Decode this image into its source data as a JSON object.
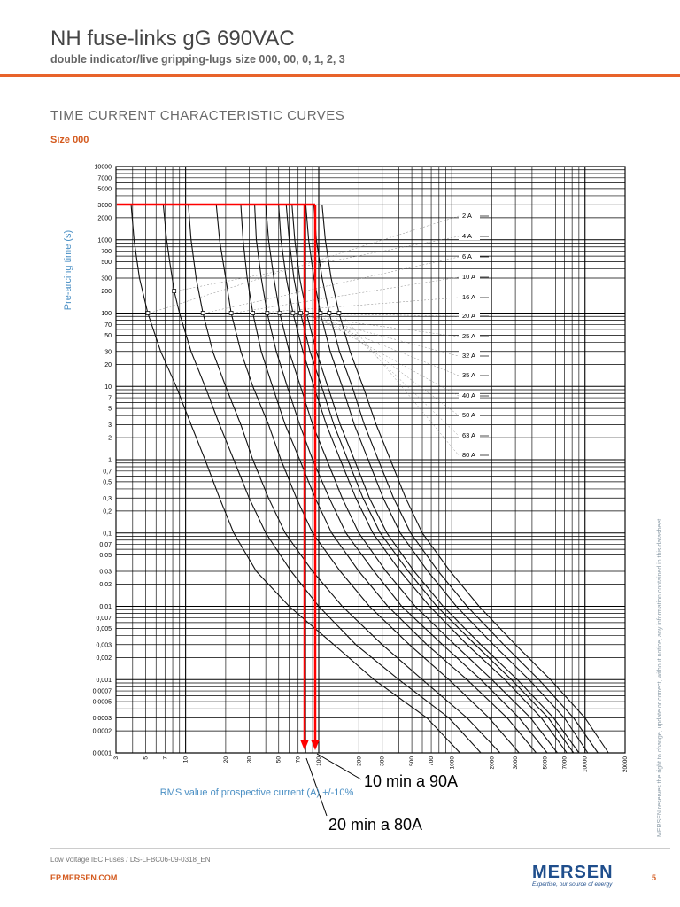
{
  "header": {
    "title": "NH fuse-links gG 690VAC",
    "subtitle": "double indicator/live gripping-lugs size 000, 00, 0, 1, 2, 3"
  },
  "section": {
    "title": "TIME CURRENT CHARACTERISTIC CURVES",
    "size_label": "Size 000"
  },
  "chart_data": {
    "type": "line",
    "title": "",
    "xlabel": "RMS value of prospective current (A) +/-10%",
    "ylabel": "Pre-arcing time (s)",
    "x_scale": "log",
    "y_scale": "log",
    "xlim": [
      3,
      20000
    ],
    "ylim": [
      0.0001,
      10000
    ],
    "grid": true,
    "x_ticks": [
      "3",
      "5",
      "7",
      "10",
      "20",
      "30",
      "50",
      "70",
      "100",
      "200",
      "300",
      "500",
      "700",
      "1000",
      "2000",
      "3000",
      "5000",
      "7000",
      "10000",
      "20000"
    ],
    "y_ticks": [
      "10000",
      "7000",
      "5000",
      "3000",
      "2000",
      "1000",
      "700",
      "500",
      "300",
      "200",
      "100",
      "70",
      "50",
      "30",
      "20",
      "10",
      "7",
      "5",
      "3",
      "2",
      "1",
      "0,7",
      "0,5",
      "0,3",
      "0,2",
      "0,1",
      "0,07",
      "0,05",
      "0,03",
      "0,02",
      "0,01",
      "0,007",
      "0,005",
      "0,003",
      "0,002",
      "0,001",
      "0,0007",
      "0,0005",
      "0,0003",
      "0,0002",
      "0,0001"
    ],
    "series": [
      {
        "name": "2 A",
        "values": [
          [
            3.9,
            3000
          ],
          [
            4.1,
            1000
          ],
          [
            4.5,
            300
          ],
          [
            5.2,
            100
          ],
          [
            6.5,
            30
          ],
          [
            8.5,
            10
          ],
          [
            11,
            3
          ],
          [
            14,
            1
          ],
          [
            18,
            0.3
          ],
          [
            23,
            0.1
          ],
          [
            34,
            0.03
          ],
          [
            60,
            0.01
          ],
          [
            130,
            0.003
          ],
          [
            260,
            0.001
          ],
          [
            650,
            0.0003
          ],
          [
            1150,
            0.0001
          ]
        ]
      },
      {
        "name": "4 A",
        "values": [
          [
            6.8,
            3000
          ],
          [
            7.2,
            1000
          ],
          [
            7.6,
            500
          ],
          [
            8.2,
            200
          ],
          [
            9,
            100
          ],
          [
            11,
            30
          ],
          [
            14,
            10
          ],
          [
            18,
            3
          ],
          [
            23,
            1
          ],
          [
            30,
            0.3
          ],
          [
            40,
            0.1
          ],
          [
            62,
            0.03
          ],
          [
            100,
            0.01
          ],
          [
            190,
            0.003
          ],
          [
            400,
            0.001
          ],
          [
            950,
            0.0003
          ],
          [
            1650,
            0.0001
          ]
        ]
      },
      {
        "name": "6 A",
        "values": [
          [
            10.5,
            3000
          ],
          [
            11,
            1000
          ],
          [
            12,
            300
          ],
          [
            13.5,
            100
          ],
          [
            16,
            30
          ],
          [
            20,
            10
          ],
          [
            26,
            3
          ],
          [
            32,
            1
          ],
          [
            42,
            0.3
          ],
          [
            56,
            0.1
          ],
          [
            90,
            0.03
          ],
          [
            150,
            0.01
          ],
          [
            300,
            0.003
          ],
          [
            600,
            0.001
          ],
          [
            1300,
            0.0003
          ],
          [
            2300,
            0.0001
          ]
        ]
      },
      {
        "name": "10 A",
        "values": [
          [
            17,
            3000
          ],
          [
            18,
            1000
          ],
          [
            20,
            300
          ],
          [
            22,
            100
          ],
          [
            26,
            30
          ],
          [
            32,
            10
          ],
          [
            42,
            3
          ],
          [
            52,
            1
          ],
          [
            68,
            0.3
          ],
          [
            90,
            0.1
          ],
          [
            145,
            0.03
          ],
          [
            240,
            0.01
          ],
          [
            480,
            0.003
          ],
          [
            950,
            0.001
          ],
          [
            1900,
            0.0003
          ],
          [
            3200,
            0.0001
          ]
        ]
      },
      {
        "name": "16 A",
        "values": [
          [
            26,
            3000
          ],
          [
            27,
            1000
          ],
          [
            29,
            300
          ],
          [
            32,
            100
          ],
          [
            37,
            30
          ],
          [
            45,
            10
          ],
          [
            56,
            3
          ],
          [
            72,
            1
          ],
          [
            94,
            0.3
          ],
          [
            125,
            0.1
          ],
          [
            200,
            0.03
          ],
          [
            330,
            0.01
          ],
          [
            650,
            0.003
          ],
          [
            1300,
            0.001
          ],
          [
            2600,
            0.0003
          ],
          [
            4300,
            0.0001
          ]
        ]
      },
      {
        "name": "20 A",
        "values": [
          [
            33,
            3000
          ],
          [
            34,
            1000
          ],
          [
            37,
            300
          ],
          [
            41,
            100
          ],
          [
            48,
            30
          ],
          [
            58,
            10
          ],
          [
            72,
            3
          ],
          [
            90,
            1
          ],
          [
            120,
            0.3
          ],
          [
            160,
            0.1
          ],
          [
            260,
            0.03
          ],
          [
            420,
            0.01
          ],
          [
            850,
            0.003
          ],
          [
            1650,
            0.001
          ],
          [
            3200,
            0.0003
          ],
          [
            5200,
            0.0001
          ]
        ]
      },
      {
        "name": "25 A",
        "values": [
          [
            40,
            3000
          ],
          [
            42,
            1000
          ],
          [
            46,
            300
          ],
          [
            51,
            100
          ],
          [
            60,
            30
          ],
          [
            73,
            10
          ],
          [
            90,
            3
          ],
          [
            115,
            1
          ],
          [
            150,
            0.3
          ],
          [
            200,
            0.1
          ],
          [
            320,
            0.03
          ],
          [
            530,
            0.01
          ],
          [
            1050,
            0.003
          ],
          [
            2000,
            0.001
          ],
          [
            3900,
            0.0003
          ],
          [
            6200,
            0.0001
          ]
        ]
      },
      {
        "name": "32 A",
        "values": [
          [
            50,
            3000
          ],
          [
            52,
            1000
          ],
          [
            57,
            300
          ],
          [
            64,
            100
          ],
          [
            76,
            30
          ],
          [
            92,
            10
          ],
          [
            114,
            3
          ],
          [
            145,
            1
          ],
          [
            190,
            0.3
          ],
          [
            255,
            0.1
          ],
          [
            410,
            0.03
          ],
          [
            680,
            0.01
          ],
          [
            1300,
            0.003
          ],
          [
            2500,
            0.001
          ],
          [
            4700,
            0.0003
          ],
          [
            7300,
            0.0001
          ]
        ]
      },
      {
        "name": "35 A",
        "values": [
          [
            57,
            3000
          ],
          [
            60,
            1000
          ],
          [
            65,
            300
          ],
          [
            73,
            100
          ],
          [
            86,
            30
          ],
          [
            105,
            10
          ],
          [
            130,
            3
          ],
          [
            165,
            1
          ],
          [
            215,
            0.3
          ],
          [
            290,
            0.1
          ],
          [
            470,
            0.03
          ],
          [
            770,
            0.01
          ],
          [
            1500,
            0.003
          ],
          [
            2800,
            0.001
          ],
          [
            5300,
            0.0003
          ],
          [
            8200,
            0.0001
          ]
        ]
      },
      {
        "name": "40 A",
        "values": [
          [
            63,
            3000
          ],
          [
            66,
            1000
          ],
          [
            72,
            300
          ],
          [
            81,
            100
          ],
          [
            96,
            30
          ],
          [
            117,
            10
          ],
          [
            145,
            3
          ],
          [
            185,
            1
          ],
          [
            240,
            0.3
          ],
          [
            325,
            0.1
          ],
          [
            520,
            0.03
          ],
          [
            860,
            0.01
          ],
          [
            1650,
            0.003
          ],
          [
            3100,
            0.001
          ],
          [
            5800,
            0.0003
          ],
          [
            9000,
            0.0001
          ]
        ]
      },
      {
        "name": "50 A",
        "values": [
          [
            80,
            3000
          ],
          [
            84,
            1000
          ],
          [
            92,
            300
          ],
          [
            103,
            100
          ],
          [
            122,
            30
          ],
          [
            150,
            10
          ],
          [
            185,
            3
          ],
          [
            235,
            1
          ],
          [
            305,
            0.3
          ],
          [
            410,
            0.1
          ],
          [
            660,
            0.03
          ],
          [
            1080,
            0.01
          ],
          [
            2050,
            0.003
          ],
          [
            3800,
            0.001
          ],
          [
            7000,
            0.0003
          ],
          [
            10500,
            0.0001
          ]
        ]
      },
      {
        "name": "63 A",
        "values": [
          [
            92,
            3000
          ],
          [
            96,
            1000
          ],
          [
            106,
            300
          ],
          [
            120,
            100
          ],
          [
            143,
            30
          ],
          [
            178,
            10
          ],
          [
            220,
            3
          ],
          [
            280,
            1
          ],
          [
            365,
            0.3
          ],
          [
            490,
            0.1
          ],
          [
            790,
            0.03
          ],
          [
            1300,
            0.01
          ],
          [
            2450,
            0.003
          ],
          [
            4500,
            0.001
          ],
          [
            8200,
            0.0003
          ],
          [
            12500,
            0.0001
          ]
        ]
      },
      {
        "name": "80 A",
        "values": [
          [
            106,
            3000
          ],
          [
            112,
            1000
          ],
          [
            124,
            300
          ],
          [
            142,
            100
          ],
          [
            172,
            30
          ],
          [
            215,
            10
          ],
          [
            270,
            3
          ],
          [
            345,
            1
          ],
          [
            450,
            0.3
          ],
          [
            600,
            0.1
          ],
          [
            970,
            0.03
          ],
          [
            1600,
            0.01
          ],
          [
            3000,
            0.003
          ],
          [
            5500,
            0.001
          ],
          [
            10000,
            0.0003
          ],
          [
            15000,
            0.0001
          ]
        ]
      }
    ],
    "annotations": [
      "10 min a 90A",
      "20 min a 80A"
    ]
  },
  "side_note": "MERSEN reserves the right to change, update or correct, without notice, any information contained in this datasheet.",
  "footer": {
    "doc_ref": "Low Voltage IEC Fuses  /  DS-LFBC06-09-0318_EN",
    "url": "EP.MERSEN.COM",
    "page": "5",
    "logo_text": "MERSEN",
    "logo_tagline": "Expertise, our source of energy"
  },
  "colors": {
    "accent": "#e8632a",
    "curve": "#1a1a1a",
    "annotation": "#ff0000",
    "grid": "#000000"
  }
}
